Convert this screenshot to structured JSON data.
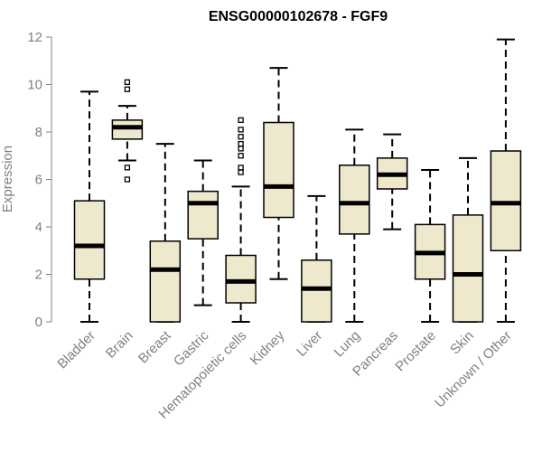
{
  "chart_data": {
    "type": "boxplot",
    "title": "ENSG00000102678 - FGF9",
    "xlabel": "",
    "ylabel": "Expression",
    "ylim": [
      0,
      12
    ],
    "yticks": [
      0,
      2,
      4,
      6,
      8,
      10,
      12
    ],
    "grid": false,
    "box_fill": "#EEE8CD",
    "categories": [
      "Bladder",
      "Brain",
      "Breast",
      "Gastric",
      "Hematopoietic cells",
      "Kidney",
      "Liver",
      "Lung",
      "Pancreas",
      "Prostate",
      "Skin",
      "Unknown / Other"
    ],
    "boxes": [
      {
        "whisker_low": 0.0,
        "q1": 1.8,
        "median": 3.2,
        "q3": 5.1,
        "whisker_high": 9.7,
        "outliers": []
      },
      {
        "whisker_low": 6.8,
        "q1": 7.7,
        "median": 8.2,
        "q3": 8.5,
        "whisker_high": 9.1,
        "outliers": [
          6.0,
          6.5,
          9.8,
          10.1
        ]
      },
      {
        "whisker_low": 0.0,
        "q1": 0.0,
        "median": 2.2,
        "q3": 3.4,
        "whisker_high": 7.5,
        "outliers": []
      },
      {
        "whisker_low": 0.7,
        "q1": 3.5,
        "median": 5.0,
        "q3": 5.5,
        "whisker_high": 6.8,
        "outliers": []
      },
      {
        "whisker_low": 0.0,
        "q1": 0.8,
        "median": 1.7,
        "q3": 2.8,
        "whisker_high": 5.7,
        "outliers": [
          6.3,
          6.5,
          7.0,
          7.3,
          7.5,
          7.8,
          8.1,
          8.5
        ]
      },
      {
        "whisker_low": 1.8,
        "q1": 4.4,
        "median": 5.7,
        "q3": 8.4,
        "whisker_high": 10.7,
        "outliers": []
      },
      {
        "whisker_low": 0.0,
        "q1": 0.0,
        "median": 1.4,
        "q3": 2.6,
        "whisker_high": 5.3,
        "outliers": []
      },
      {
        "whisker_low": 0.0,
        "q1": 3.7,
        "median": 5.0,
        "q3": 6.6,
        "whisker_high": 8.1,
        "outliers": []
      },
      {
        "whisker_low": 3.9,
        "q1": 5.6,
        "median": 6.2,
        "q3": 6.9,
        "whisker_high": 7.9,
        "outliers": []
      },
      {
        "whisker_low": 0.0,
        "q1": 1.8,
        "median": 2.9,
        "q3": 4.1,
        "whisker_high": 6.4,
        "outliers": []
      },
      {
        "whisker_low": 0.0,
        "q1": 0.0,
        "median": 2.0,
        "q3": 4.5,
        "whisker_high": 6.9,
        "outliers": []
      },
      {
        "whisker_low": 0.0,
        "q1": 3.0,
        "median": 5.0,
        "q3": 7.2,
        "whisker_high": 11.9,
        "outliers": []
      }
    ]
  }
}
